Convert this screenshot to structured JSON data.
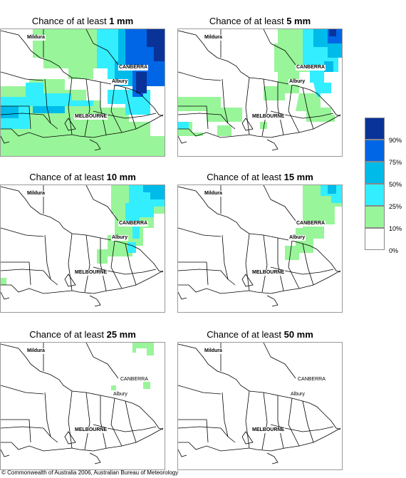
{
  "panels": [
    {
      "prefix": "Chance of at least ",
      "amount": "1 mm"
    },
    {
      "prefix": "Chance of at least ",
      "amount": "5 mm"
    },
    {
      "prefix": "Chance of at least ",
      "amount": "10 mm"
    },
    {
      "prefix": "Chance of at least ",
      "amount": "15 mm"
    },
    {
      "prefix": "Chance of at least ",
      "amount": "25 mm"
    },
    {
      "prefix": "Chance of at least ",
      "amount": "50 mm"
    }
  ],
  "places": {
    "mildura": "Mildura",
    "canberra": "CANBERRA",
    "albury": "Albury",
    "melbourne": "MELBOURNE"
  },
  "legend": {
    "labels": [
      "90%",
      "75%",
      "50%",
      "25%",
      "10%",
      "0%"
    ],
    "colors": [
      "#0a3399",
      "#0066e6",
      "#00bbea",
      "#33eeff",
      "#99f599",
      "#ffffff"
    ]
  },
  "footer": {
    "copyright": "© Commonwealth of Australia 2006, Australian Bureau of Meteorology"
  }
}
